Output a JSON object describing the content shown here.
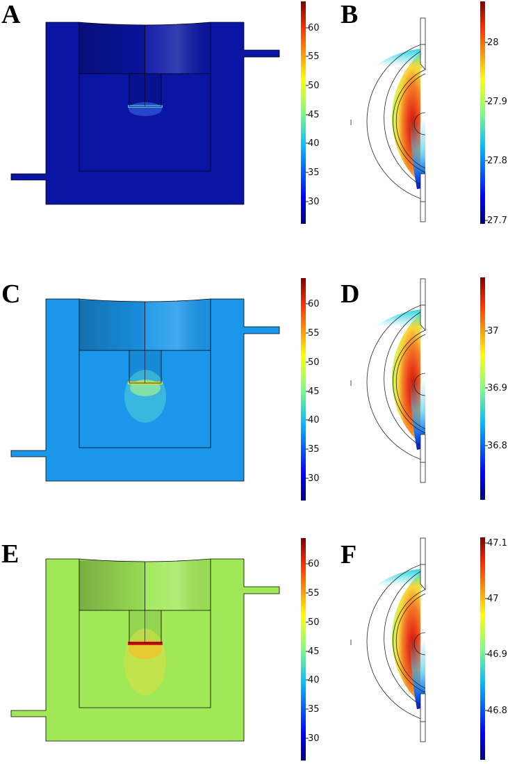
{
  "figure": {
    "rows": [
      {
        "cross_section_panel": {
          "letter": "A",
          "uniform_color": "#0a14a3",
          "hotspot": "#4aa8f0"
        },
        "cross_section_colorbar": {
          "ticks": [
            "30",
            "35",
            "40",
            "45",
            "50",
            "55",
            "60"
          ],
          "range": [
            26,
            64
          ]
        },
        "hemisphere_panel": {
          "letter": "B"
        },
        "hemisphere_colorbar": {
          "ticks": [
            "27.7",
            "27.8",
            "27.9",
            "28"
          ],
          "range": [
            27.69,
            28.07
          ]
        }
      },
      {
        "cross_section_panel": {
          "letter": "C",
          "uniform_color": "#1a96ea",
          "hotspot": "#e8e030"
        },
        "cross_section_colorbar": {
          "ticks": [
            "30",
            "35",
            "40",
            "45",
            "50",
            "55",
            "60"
          ],
          "range": [
            26,
            64
          ]
        },
        "hemisphere_panel": {
          "letter": "D"
        },
        "hemisphere_colorbar": {
          "ticks": [
            "36.8",
            "36.9",
            "37"
          ],
          "range": [
            36.71,
            37.09
          ]
        }
      },
      {
        "cross_section_panel": {
          "letter": "E",
          "uniform_color": "#a0e858",
          "hotspot": "#d81a10"
        },
        "cross_section_colorbar": {
          "ticks": [
            "30",
            "35",
            "40",
            "45",
            "50",
            "55",
            "60"
          ],
          "range": [
            26,
            64
          ]
        },
        "hemisphere_panel": {
          "letter": "F"
        },
        "hemisphere_colorbar": {
          "ticks": [
            "46.8",
            "46.9",
            "47",
            "47.1"
          ],
          "range": [
            46.71,
            47.11
          ]
        }
      }
    ]
  }
}
